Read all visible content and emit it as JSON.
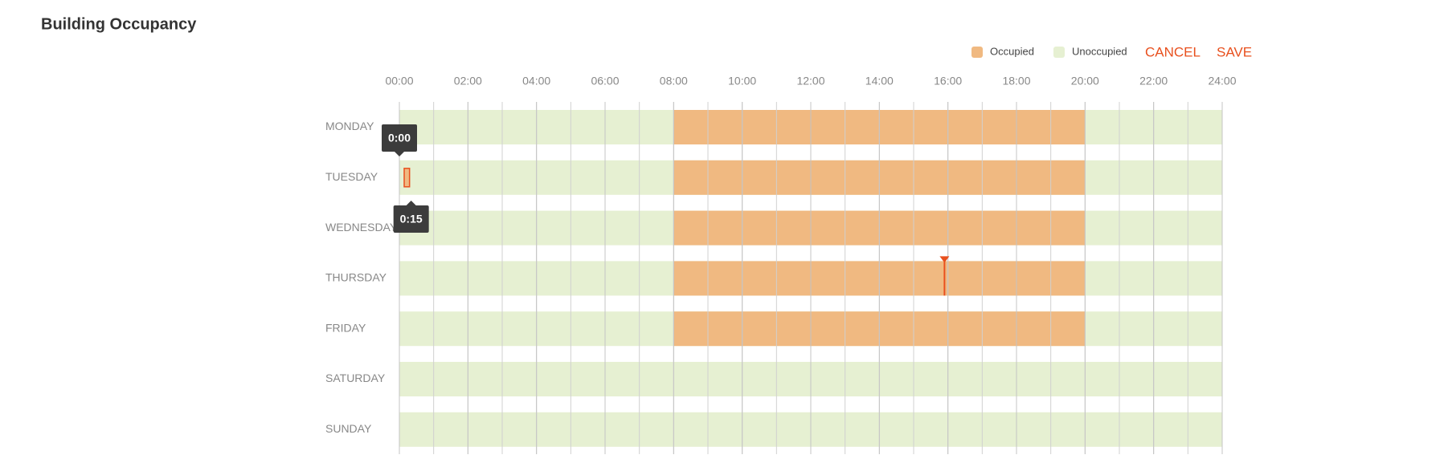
{
  "title": "Building Occupancy",
  "legend": [
    {
      "label": "Occupied",
      "color": "#f0b981"
    },
    {
      "label": "Unoccupied",
      "color": "#e6f0d2"
    }
  ],
  "actions": [
    "CANCEL",
    "SAVE"
  ],
  "schedule": {
    "xlim": [
      0,
      24
    ],
    "xticks": [
      {
        "value": 0,
        "label": "00:00"
      },
      {
        "value": 2,
        "label": "02:00"
      },
      {
        "value": 4,
        "label": "04:00"
      },
      {
        "value": 6,
        "label": "06:00"
      },
      {
        "value": 8,
        "label": "08:00"
      },
      {
        "value": 10,
        "label": "10:00"
      },
      {
        "value": 12,
        "label": "12:00"
      },
      {
        "value": 14,
        "label": "14:00"
      },
      {
        "value": 16,
        "label": "16:00"
      },
      {
        "value": 18,
        "label": "18:00"
      },
      {
        "value": 20,
        "label": "20:00"
      },
      {
        "value": 22,
        "label": "22:00"
      },
      {
        "value": 24,
        "label": "24:00"
      }
    ],
    "days": [
      {
        "name": "MONDAY",
        "occupied": [
          {
            "start": 8,
            "end": 20
          }
        ]
      },
      {
        "name": "TUESDAY",
        "occupied": [
          {
            "start": 8,
            "end": 20
          }
        ]
      },
      {
        "name": "WEDNESDAY",
        "occupied": [
          {
            "start": 8,
            "end": 20
          }
        ]
      },
      {
        "name": "THURSDAY",
        "occupied": [
          {
            "start": 8,
            "end": 20
          }
        ]
      },
      {
        "name": "FRIDAY",
        "occupied": [
          {
            "start": 8,
            "end": 20
          }
        ]
      },
      {
        "name": "SATURDAY",
        "occupied": []
      },
      {
        "name": "SUNDAY",
        "occupied": []
      }
    ],
    "selection": {
      "day": 1,
      "start": 0,
      "end": 0.25,
      "start_label": "0:00",
      "end_label": "0:15"
    },
    "cursor": {
      "day": 3,
      "time": 15.9
    }
  }
}
